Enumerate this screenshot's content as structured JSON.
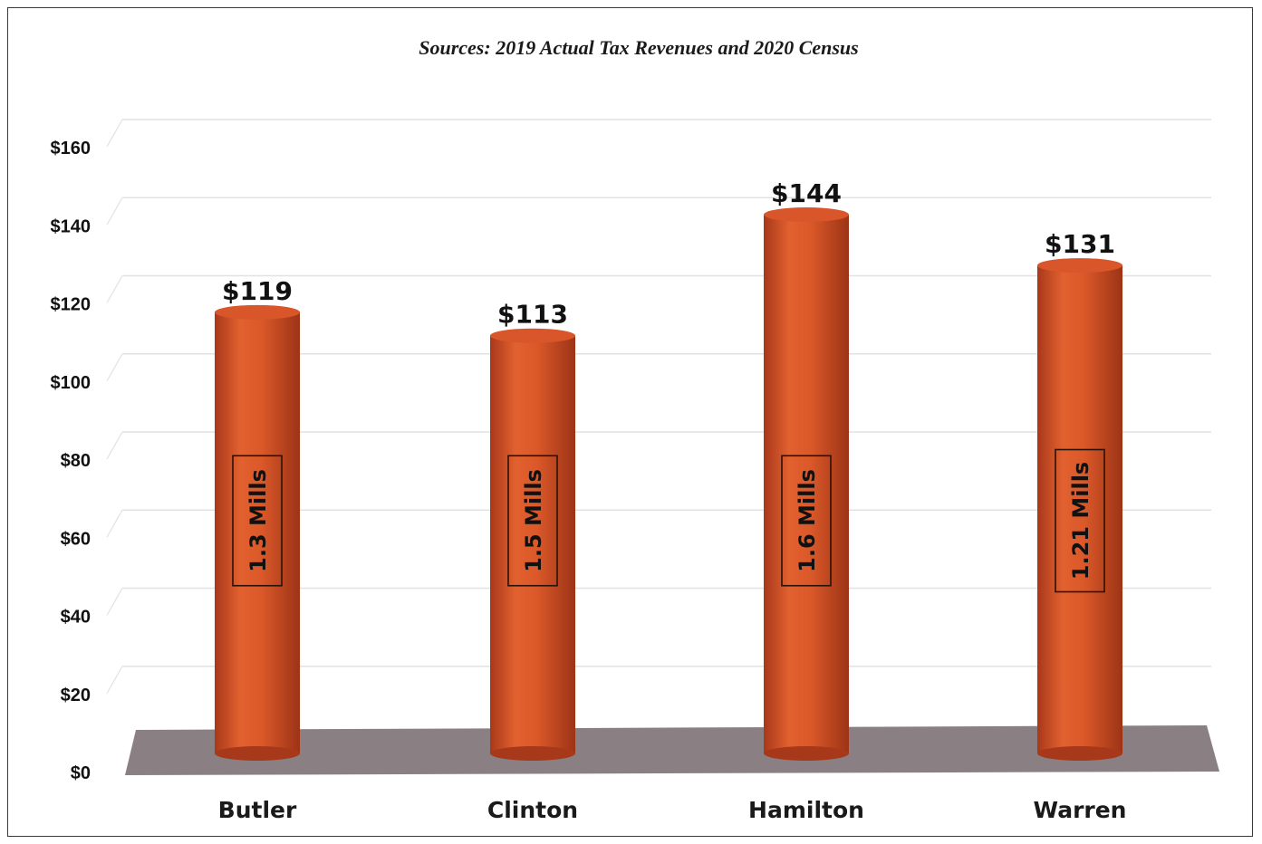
{
  "title": "Sources: 2019 Actual Tax Revenues and 2020 Census",
  "colors": {
    "bar": "#d9552a",
    "bar_dark": "#a8381a",
    "bar_light": "#f07a4a",
    "floor": "#8a7f82",
    "grid": "#e2e2e2"
  },
  "chart_data": {
    "type": "bar",
    "categories": [
      "Butler",
      "Clinton",
      "Hamilton",
      "Warren"
    ],
    "values": [
      119,
      113,
      144,
      131
    ],
    "value_labels": [
      "$119",
      "$113",
      "$144",
      "$131"
    ],
    "bar_annotations": [
      "1.3 Mills",
      "1.5 Mills",
      "1.6 Mills",
      "1.21 Mills"
    ],
    "ylim": [
      0,
      160
    ],
    "yticks": [
      0,
      20,
      40,
      60,
      80,
      100,
      120,
      140,
      160
    ],
    "ytick_labels": [
      "$0",
      "$20",
      "$40",
      "$60",
      "$80",
      "$100",
      "$120",
      "$140",
      "$160"
    ],
    "xlabel": "",
    "ylabel": "",
    "grid": true,
    "legend": "none",
    "bar_shape": "cylinder"
  }
}
